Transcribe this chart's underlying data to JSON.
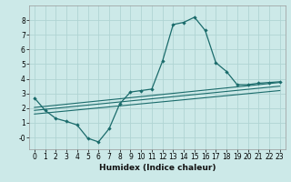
{
  "xlabel": "Humidex (Indice chaleur)",
  "ylabel": "",
  "background_color": "#cce9e8",
  "grid_color": "#b0d4d3",
  "line_color": "#1a6b6b",
  "xlim": [
    -0.5,
    23.5
  ],
  "ylim": [
    -0.8,
    9.0
  ],
  "xticks": [
    0,
    1,
    2,
    3,
    4,
    5,
    6,
    7,
    8,
    9,
    10,
    11,
    12,
    13,
    14,
    15,
    16,
    17,
    18,
    19,
    20,
    21,
    22,
    23
  ],
  "yticks": [
    0,
    1,
    2,
    3,
    4,
    5,
    6,
    7,
    8
  ],
  "ytick_labels": [
    "-0",
    "1",
    "2",
    "3",
    "4",
    "5",
    "6",
    "7",
    "8"
  ],
  "main_x": [
    0,
    1,
    2,
    3,
    4,
    5,
    6,
    7,
    8,
    9,
    10,
    11,
    12,
    13,
    14,
    15,
    16,
    17,
    18,
    19,
    20,
    21,
    22,
    23
  ],
  "main_y": [
    2.7,
    1.85,
    1.3,
    1.1,
    0.85,
    -0.05,
    -0.3,
    0.6,
    2.3,
    3.1,
    3.2,
    3.3,
    5.2,
    7.7,
    7.85,
    8.2,
    7.3,
    5.1,
    4.5,
    3.6,
    3.6,
    3.7,
    3.75,
    3.8
  ],
  "line1_x": [
    0,
    23
  ],
  "line1_y": [
    1.85,
    3.5
  ],
  "line2_x": [
    0,
    23
  ],
  "line2_y": [
    2.05,
    3.75
  ],
  "line3_x": [
    0,
    23
  ],
  "line3_y": [
    1.6,
    3.2
  ]
}
